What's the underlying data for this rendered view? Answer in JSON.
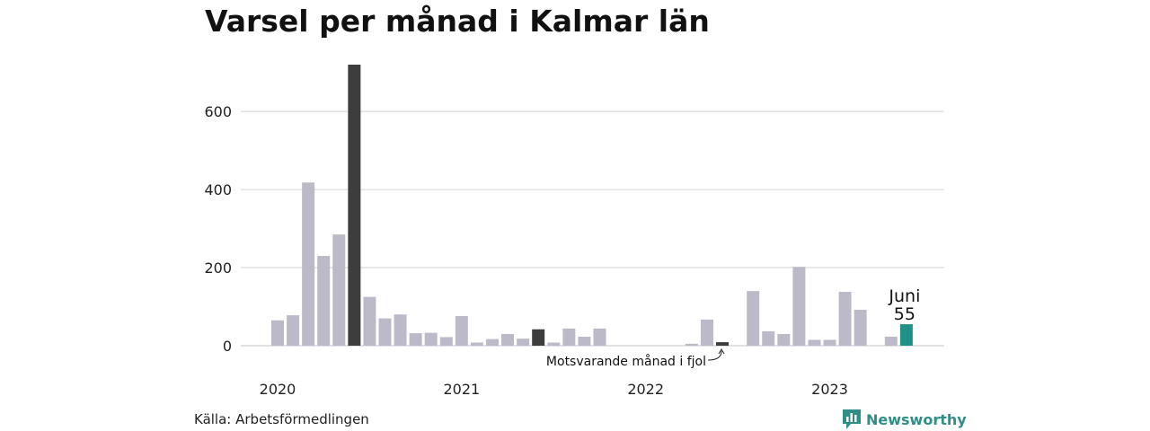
{
  "title": "Varsel per månad i Kalmar län",
  "source": "Källa: Arbetsförmedlingen",
  "brand": {
    "name": "Newsworthy",
    "icon": "newsworthy-logo-icon"
  },
  "colors": {
    "default_bar": "#bcbac9",
    "highlight_bar": "#3d3d3d",
    "current_bar": "#1f9186",
    "grid": "#dddddd",
    "brand": "#2f8f86"
  },
  "chart_data": {
    "type": "bar",
    "ylim": [
      0,
      720
    ],
    "yticks": [
      0,
      200,
      400,
      600
    ],
    "grid": true,
    "xtick_labels": [
      {
        "label": "2020",
        "index": 0
      },
      {
        "label": "2021",
        "index": 12
      },
      {
        "label": "2022",
        "index": 24
      },
      {
        "label": "2023",
        "index": 36
      }
    ],
    "months": [
      "2020-01",
      "2020-02",
      "2020-03",
      "2020-04",
      "2020-05",
      "2020-06",
      "2020-07",
      "2020-08",
      "2020-09",
      "2020-10",
      "2020-11",
      "2020-12",
      "2021-01",
      "2021-02",
      "2021-03",
      "2021-04",
      "2021-05",
      "2021-06",
      "2021-07",
      "2021-08",
      "2021-09",
      "2021-10",
      "2021-11",
      "2021-12",
      "2022-01",
      "2022-02",
      "2022-03",
      "2022-04",
      "2022-05",
      "2022-06",
      "2022-07",
      "2022-08",
      "2022-09",
      "2022-10",
      "2022-11",
      "2022-12",
      "2023-01",
      "2023-02",
      "2023-03",
      "2023-04",
      "2023-05",
      "2023-06"
    ],
    "values": [
      65,
      78,
      418,
      230,
      285,
      720,
      125,
      70,
      80,
      32,
      33,
      22,
      76,
      8,
      17,
      30,
      18,
      42,
      8,
      44,
      23,
      44,
      0,
      0,
      0,
      0,
      0,
      5,
      67,
      9,
      0,
      140,
      37,
      30,
      202,
      15,
      15,
      138,
      92,
      0,
      23,
      55
    ],
    "highlighted": [
      5,
      17,
      29
    ],
    "current": 41,
    "annotations": {
      "current_month": "Juni",
      "current_value": "55",
      "last_year": "Motsvarande månad i fjol"
    }
  }
}
